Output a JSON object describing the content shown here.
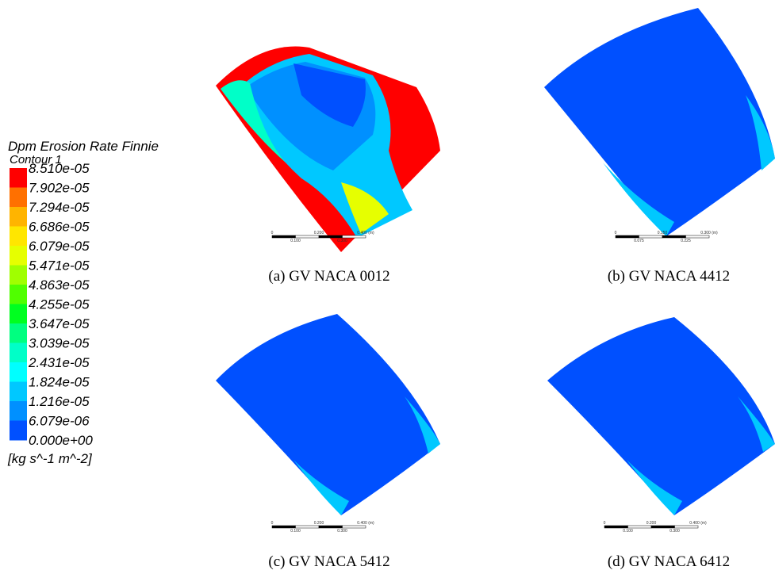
{
  "legend": {
    "title": "Dpm Erosion Rate Finnie",
    "subtitle": "Contour 1",
    "levels": [
      "8.510e-05",
      "7.902e-05",
      "7.294e-05",
      "6.686e-05",
      "6.079e-05",
      "5.471e-05",
      "4.863e-05",
      "4.255e-05",
      "3.647e-05",
      "3.039e-05",
      "2.431e-05",
      "1.824e-05",
      "1.216e-05",
      "6.079e-06",
      "0.000e+00"
    ],
    "colors": [
      "#ff0000",
      "#ff7000",
      "#ffb400",
      "#ffe600",
      "#e6ff00",
      "#a0ff00",
      "#50ff00",
      "#00ff20",
      "#00ff80",
      "#00ffc8",
      "#00ffff",
      "#00c8ff",
      "#0090ff",
      "#0050ff"
    ],
    "unit": "[kg s^-1 m^-2]"
  },
  "panels": [
    {
      "caption": "(a) GV NACA 0012",
      "scale_labels": [
        "0",
        "0.200",
        "0.400 (m)",
        "0.100",
        "0.300"
      ]
    },
    {
      "caption": "(b) GV NACA 4412",
      "scale_labels": [
        "0",
        "0.150",
        "0.300 (m)",
        "0.075",
        "0.225"
      ]
    },
    {
      "caption": "(c) GV NACA 5412",
      "scale_labels": [
        "0",
        "0.200",
        "0.400 (m)",
        "0.100",
        "0.300"
      ]
    },
    {
      "caption": "(d) GV NACA 6412",
      "scale_labels": [
        "0",
        "0.200",
        "0.400 (m)",
        "0.100",
        "0.300"
      ]
    }
  ]
}
